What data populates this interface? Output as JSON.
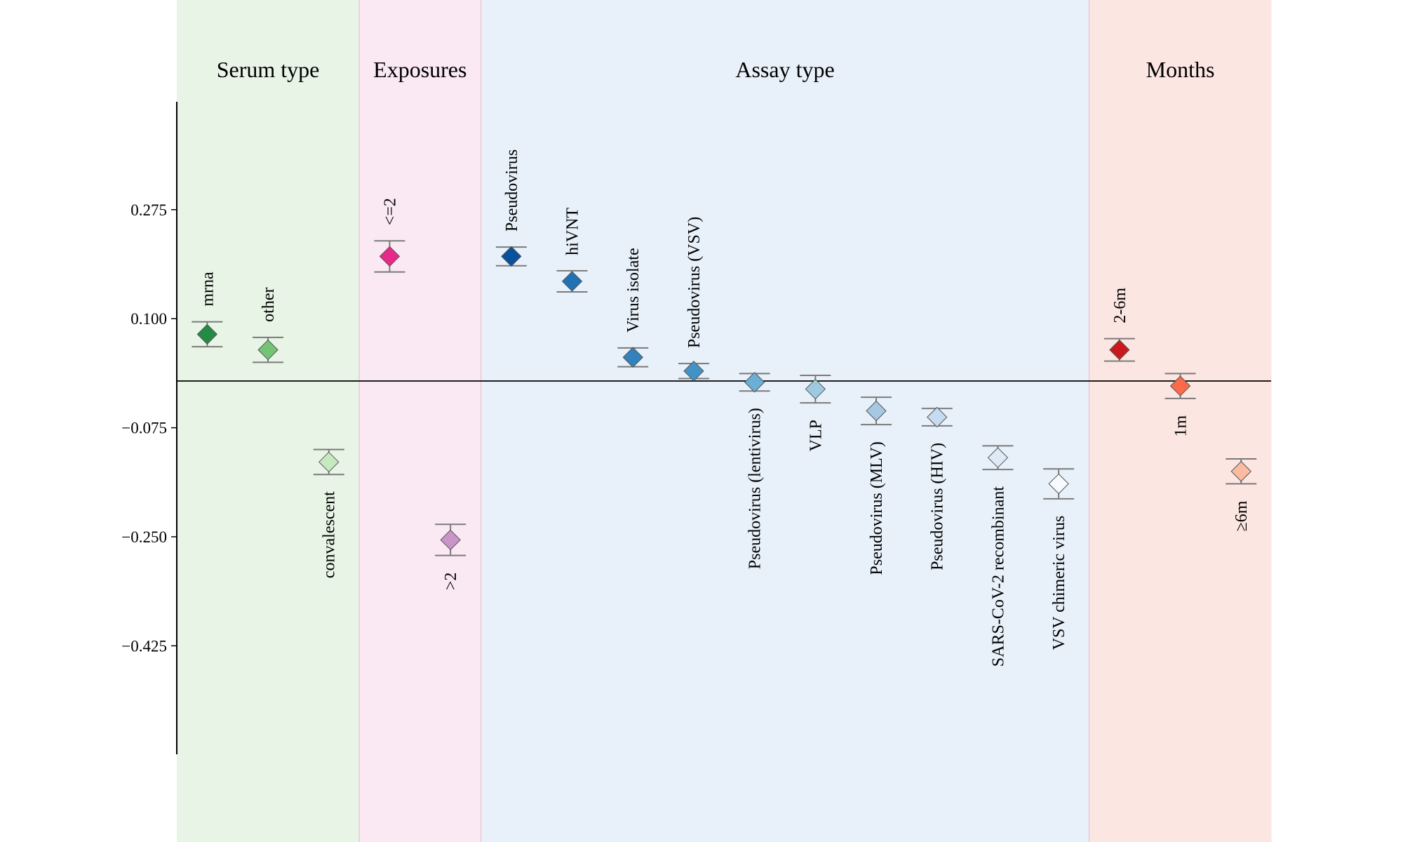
{
  "chart_data": {
    "type": "scatter",
    "title": "",
    "xlabel": "",
    "ylabel": "",
    "ylim": [
      -0.7,
      0.46
    ],
    "yticks": [
      0.275,
      0.1,
      -0.075,
      -0.25,
      -0.425
    ],
    "ytick_labels": [
      "0.275",
      "0.100",
      "−0.075",
      "−0.250",
      "−0.425"
    ],
    "reference_line": 0,
    "grid": false,
    "groups": [
      {
        "name": "Serum type",
        "background": "#e8f5e6",
        "points": [
          {
            "label": "mrna",
            "value": 0.075,
            "err": 0.02,
            "color": "#238b45",
            "label_position": "above"
          },
          {
            "label": "other",
            "value": 0.05,
            "err": 0.02,
            "color": "#74c476",
            "label_position": "above"
          },
          {
            "label": "convalescent",
            "value": -0.13,
            "err": 0.02,
            "color": "#c7e9c0",
            "label_position": "below"
          }
        ]
      },
      {
        "name": "Exposures",
        "background": "#fae9f3",
        "points": [
          {
            "label": "<=2",
            "value": 0.2,
            "err": 0.025,
            "color": "#e7298a",
            "label_position": "above"
          },
          {
            "label": ">2",
            "value": -0.255,
            "err": 0.025,
            "color": "#c994c7",
            "label_position": "below"
          }
        ]
      },
      {
        "name": "Assay type",
        "background": "#e8f1fa",
        "points": [
          {
            "label": "Pseudovirus",
            "value": 0.2,
            "err": 0.015,
            "color": "#08519c",
            "label_position": "above"
          },
          {
            "label": "hiVNT",
            "value": 0.16,
            "err": 0.017,
            "color": "#2171b5",
            "label_position": "above"
          },
          {
            "label": "Virus isolate",
            "value": 0.038,
            "err": 0.015,
            "color": "#3182bd",
            "label_position": "above"
          },
          {
            "label": "Pseudovirus (VSV)",
            "value": 0.016,
            "err": 0.012,
            "color": "#4292c6",
            "label_position": "above"
          },
          {
            "label": "Pseudovirus (lentivirus)",
            "value": -0.002,
            "err": 0.014,
            "color": "#6baed6",
            "label_position": "below"
          },
          {
            "label": "VLP",
            "value": -0.013,
            "err": 0.022,
            "color": "#9ecae1",
            "label_position": "below"
          },
          {
            "label": "Pseudovirus (MLV)",
            "value": -0.048,
            "err": 0.022,
            "color": "#a6c8e2",
            "label_position": "below"
          },
          {
            "label": "Pseudovirus (HIV)",
            "value": -0.058,
            "err": 0.014,
            "color": "#c6dbef",
            "label_position": "below"
          },
          {
            "label": "SARS-CoV-2 recombinant",
            "value": -0.123,
            "err": 0.019,
            "color": "#deebf7",
            "label_position": "below"
          },
          {
            "label": "VSV chimeric virus",
            "value": -0.165,
            "err": 0.024,
            "color": "#f7fbff",
            "label_position": "below"
          }
        ]
      },
      {
        "name": "Months",
        "background": "#fce6e1",
        "points": [
          {
            "label": "2-6m",
            "value": 0.05,
            "err": 0.018,
            "color": "#cb181d",
            "label_position": "above"
          },
          {
            "label": "1m",
            "value": -0.008,
            "err": 0.02,
            "color": "#fb6a4a",
            "label_position": "below"
          },
          {
            "label": "≥6m",
            "value": -0.145,
            "err": 0.02,
            "color": "#fcbba1",
            "label_position": "below"
          }
        ]
      }
    ]
  }
}
